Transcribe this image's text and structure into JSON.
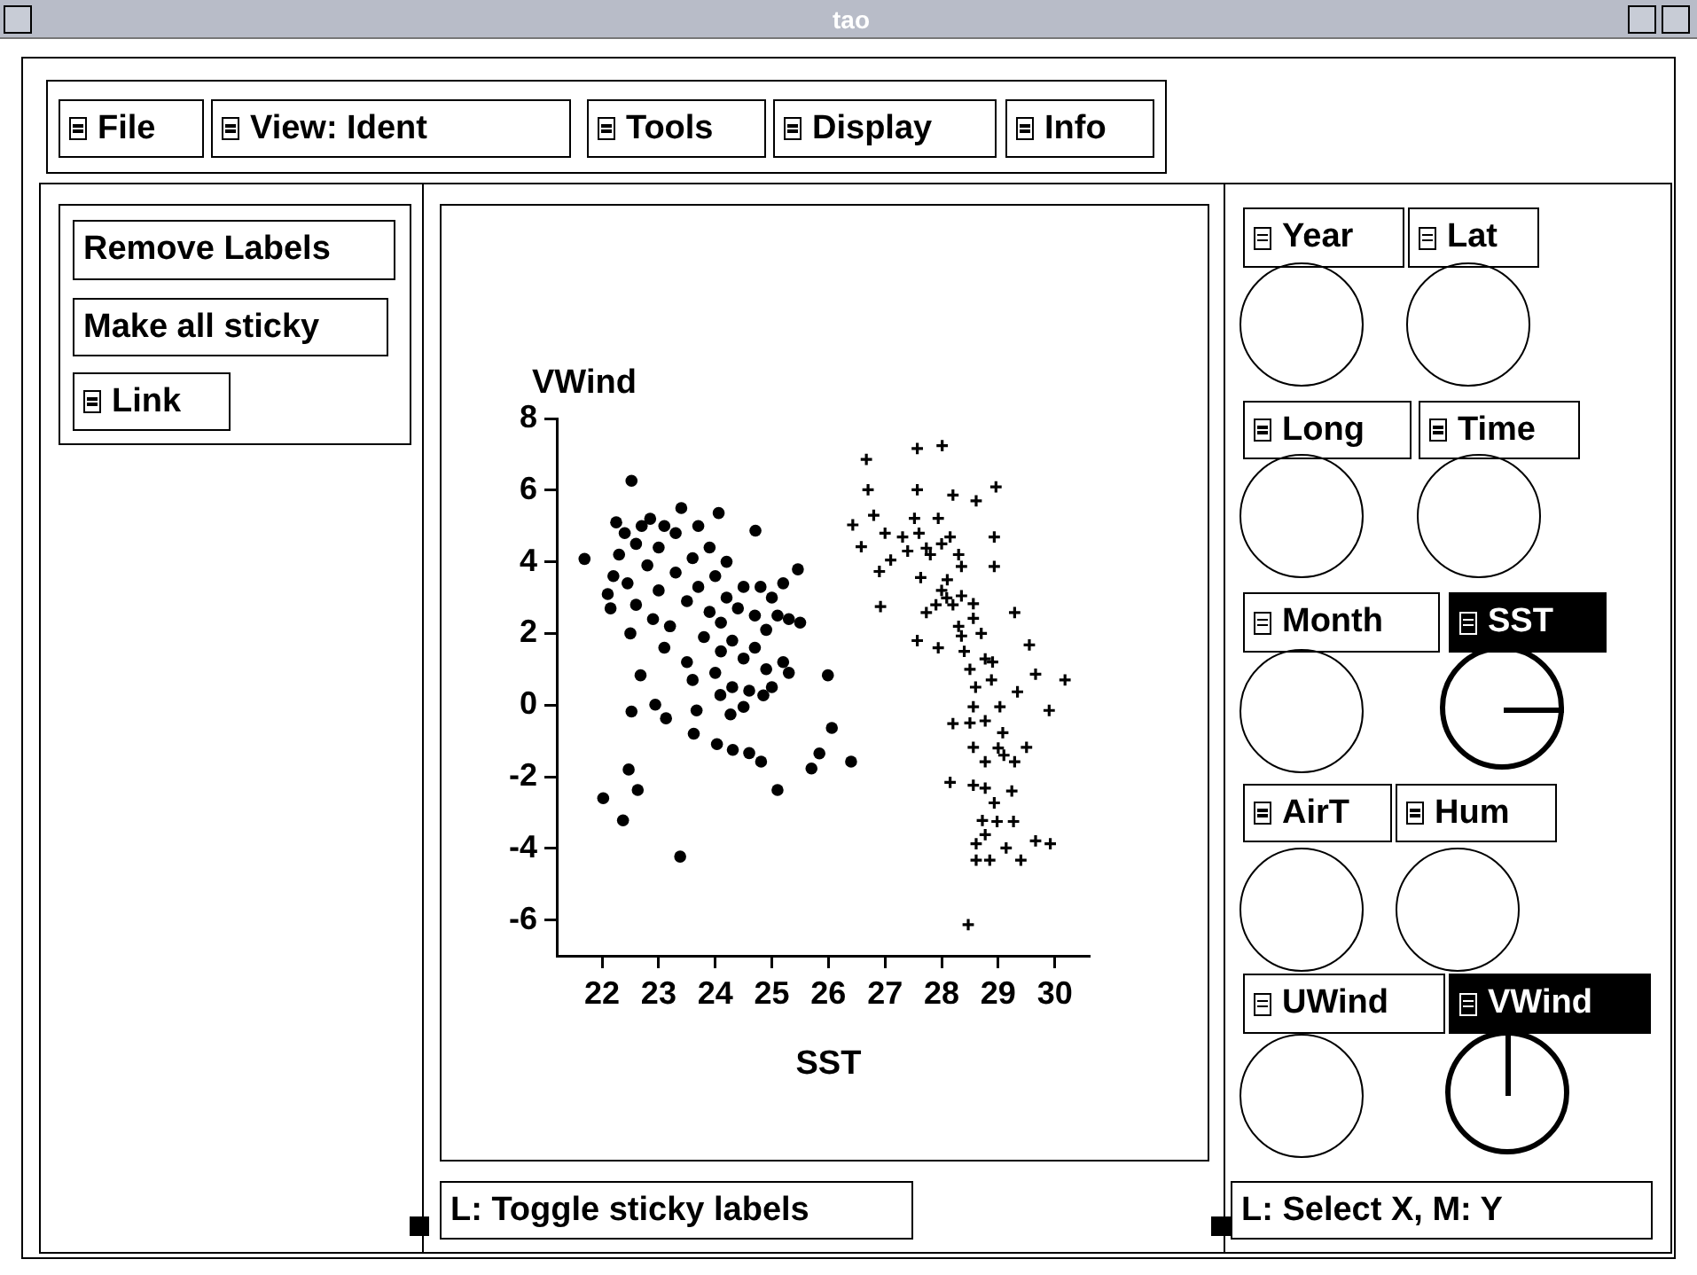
{
  "chart_data": {
    "type": "scatter",
    "xlabel": "SST",
    "ylabel": "VWind",
    "xlim": [
      21.2,
      30.6
    ],
    "xticks": [
      22,
      23,
      24,
      25,
      26,
      27,
      28,
      29,
      30
    ],
    "ylim": [
      -7,
      8
    ],
    "yticks": [
      -6,
      -4,
      -2,
      0,
      2,
      4,
      6,
      8
    ],
    "grid": false,
    "legend": false,
    "annotations": [
      "tao",
      "File",
      "View: Ident",
      "Tools",
      "Display",
      "Info",
      "Remove Labels",
      "Make all sticky",
      "Link",
      "Year",
      "Lat",
      "Long",
      "Time",
      "Month",
      "SST",
      "AirT",
      "Hum",
      "UWind",
      "VWind",
      "L: Toggle sticky labels",
      "L: Select X,  M: Y"
    ],
    "series": [
      {
        "color": "#000000",
        "marker": "circle",
        "x": [
          21.69,
          22.52,
          24.06,
          24.71,
          25.46,
          25.5,
          25.99,
          26.06,
          26.4,
          25.84,
          25.7,
          25.1,
          24.81,
          24.6,
          24.31,
          24.03,
          23.62,
          23.67,
          23.13,
          22.94,
          22.52,
          22.47,
          22.63,
          22.02,
          22.37,
          23.38,
          22.68,
          24.27,
          24.5,
          24.09,
          24.85,
          22.1,
          22.2,
          22.15,
          22.3,
          22.25,
          22.4,
          22.45,
          22.5,
          22.6,
          22.6,
          22.7,
          22.8,
          22.85,
          22.9,
          23.0,
          23.0,
          23.1,
          23.1,
          23.2,
          23.3,
          23.3,
          23.4,
          23.5,
          23.5,
          23.6,
          23.6,
          23.7,
          23.7,
          23.8,
          23.9,
          23.9,
          24.0,
          24.0,
          24.1,
          24.1,
          24.2,
          24.2,
          24.3,
          24.3,
          24.4,
          24.5,
          24.5,
          24.6,
          24.7,
          24.7,
          24.8,
          24.9,
          24.9,
          25.0,
          25.0,
          25.1,
          25.2,
          25.2,
          25.3,
          25.3
        ],
        "values": [
          4.08,
          6.26,
          5.36,
          4.87,
          3.79,
          2.3,
          0.83,
          -0.64,
          -1.58,
          -1.35,
          -1.77,
          -2.37,
          -1.58,
          -1.34,
          -1.25,
          -1.09,
          -0.8,
          -0.15,
          -0.37,
          0.01,
          -0.18,
          -1.8,
          -2.37,
          -2.6,
          -3.22,
          -4.23,
          0.83,
          -0.26,
          -0.05,
          0.28,
          0.27,
          3.1,
          3.6,
          2.7,
          4.2,
          5.1,
          4.8,
          3.4,
          2.0,
          4.5,
          2.8,
          5.0,
          3.9,
          5.2,
          2.4,
          4.4,
          3.2,
          1.6,
          5.0,
          2.2,
          3.7,
          4.8,
          5.5,
          1.2,
          2.9,
          4.1,
          0.7,
          3.3,
          5.0,
          1.9,
          2.6,
          4.4,
          0.9,
          3.6,
          1.5,
          2.3,
          4.0,
          3.0,
          0.5,
          1.8,
          2.7,
          3.3,
          1.3,
          0.4,
          2.5,
          1.6,
          3.3,
          2.1,
          1.0,
          0.5,
          3.0,
          2.5,
          1.2,
          3.4,
          0.9,
          2.4
        ]
      },
      {
        "color": "#000000",
        "marker": "cross",
        "x": [
          26.67,
          27.57,
          28.01,
          28.96,
          26.43,
          26.7,
          26.9,
          26.92,
          27.1,
          26.58,
          27.31,
          27.52,
          27.57,
          27.63,
          27.73,
          27.94,
          28.2,
          28.15,
          28.35,
          28.61,
          28.09,
          27.73,
          27.57,
          27.94,
          28.35,
          28.56,
          28.77,
          28.88,
          28.56,
          28.35,
          28.93,
          28.93,
          29.29,
          29.55,
          29.66,
          30.18,
          29.9,
          29.34,
          29.03,
          28.56,
          28.77,
          28.2,
          29.08,
          28.56,
          28.77,
          29.29,
          29.5,
          28.15,
          28.56,
          28.77,
          28.93,
          29.24,
          28.72,
          28.98,
          29.27,
          28.77,
          28.61,
          29.14,
          29.66,
          29.92,
          28.61,
          28.85,
          29.4,
          28.47,
          27.6,
          27.8,
          28.0,
          28.1,
          28.2,
          28.3,
          28.4,
          28.5,
          28.6,
          28.0,
          27.9,
          28.7,
          28.9,
          29.0,
          29.1,
          28.5,
          28.3,
          27.4,
          27.0,
          26.8
        ],
        "values": [
          6.86,
          7.16,
          7.24,
          6.09,
          5.03,
          6.01,
          3.73,
          2.75,
          4.05,
          4.42,
          4.69,
          5.21,
          6.01,
          3.56,
          4.38,
          5.21,
          5.86,
          4.69,
          3.87,
          5.7,
          2.99,
          2.58,
          1.8,
          1.6,
          1.93,
          2.42,
          1.29,
          0.7,
          2.83,
          3.05,
          3.87,
          4.69,
          2.58,
          1.68,
          0.86,
          0.7,
          -0.15,
          0.37,
          -0.05,
          -0.05,
          -0.44,
          -0.52,
          -0.77,
          -1.18,
          -1.58,
          -1.58,
          -1.18,
          -2.16,
          -2.24,
          -2.32,
          -2.73,
          -2.4,
          -3.22,
          -3.25,
          -3.25,
          -3.62,
          -3.87,
          -3.99,
          -3.79,
          -3.87,
          -4.33,
          -4.33,
          -4.33,
          -6.13,
          4.8,
          4.2,
          4.5,
          3.5,
          2.8,
          2.2,
          1.5,
          1.0,
          0.5,
          3.2,
          2.8,
          2.0,
          1.2,
          -1.2,
          -1.4,
          -0.5,
          4.2,
          4.3,
          4.8,
          5.3
        ]
      }
    ]
  }
}
